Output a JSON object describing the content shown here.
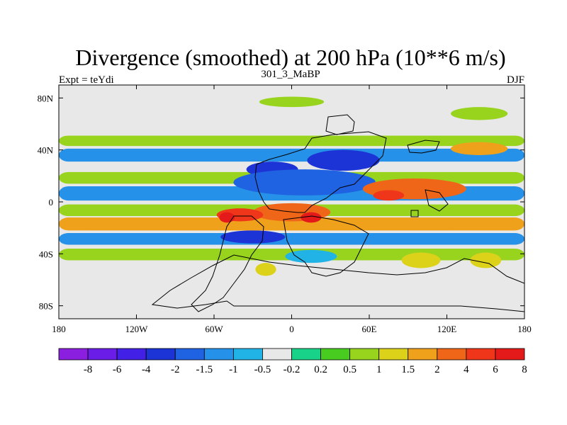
{
  "chart_data": {
    "type": "heatmap",
    "title": "Divergence (smoothed) at 200 hPa (10**6 m/s)",
    "subtitle_left": "Expt = teYdi",
    "subtitle_center": "301_3_MaBP",
    "subtitle_right": "DJF",
    "x_range": [
      -180,
      180
    ],
    "y_range": [
      -90,
      90
    ],
    "x_ticks": [
      {
        "value": -180,
        "label": "180"
      },
      {
        "value": -120,
        "label": "120W"
      },
      {
        "value": -60,
        "label": "60W"
      },
      {
        "value": 0,
        "label": "0"
      },
      {
        "value": 60,
        "label": "60E"
      },
      {
        "value": 120,
        "label": "120E"
      },
      {
        "value": 180,
        "label": "180"
      }
    ],
    "y_ticks": [
      {
        "value": 80,
        "label": "80N"
      },
      {
        "value": 40,
        "label": "40N"
      },
      {
        "value": 0,
        "label": "0"
      },
      {
        "value": -40,
        "label": "40S"
      },
      {
        "value": -80,
        "label": "80S"
      }
    ],
    "colorbar": {
      "colors": [
        "#8b1fe0",
        "#6a1de6",
        "#4220e6",
        "#1c34d6",
        "#1f62e2",
        "#2591e8",
        "#22b3e6",
        "#e8e8e8",
        "#19d28a",
        "#48cc20",
        "#98d41e",
        "#dcd21a",
        "#f0a11b",
        "#f06618",
        "#f0361a",
        "#e41a1a"
      ],
      "labels": [
        "-8",
        "-6",
        "-4",
        "-2",
        "-1.5",
        "-1",
        "-0.5",
        "-0.2",
        "0.2",
        "0.5",
        "1",
        "1.5",
        "2",
        "4",
        "6",
        "8"
      ]
    },
    "bands": [
      {
        "level": 0.5,
        "lon0": -180,
        "lon1": 180,
        "lat0": 43,
        "lat1": 51
      },
      {
        "level": -1.5,
        "lon0": -180,
        "lon1": 180,
        "lat0": 31,
        "lat1": 41
      },
      {
        "level": 0.5,
        "lon0": -180,
        "lon1": 180,
        "lat0": 14,
        "lat1": 23
      },
      {
        "level": -1.5,
        "lon0": -180,
        "lon1": 180,
        "lat0": 1,
        "lat1": 12
      },
      {
        "level": 0.5,
        "lon0": -180,
        "lon1": 180,
        "lat0": -11,
        "lat1": -2
      },
      {
        "level": 1.5,
        "lon0": -180,
        "lon1": 180,
        "lat0": -22,
        "lat1": -12
      },
      {
        "level": -1.5,
        "lon0": -180,
        "lon1": 180,
        "lat0": -33,
        "lat1": -24
      },
      {
        "level": 0.5,
        "lon0": -180,
        "lon1": 180,
        "lat0": -45,
        "lat1": -36
      },
      {
        "level": -0.5,
        "lon0": -180,
        "lon1": 180,
        "lat0": -60,
        "lat1": -50
      }
    ],
    "blobs": [
      {
        "level": 0.5,
        "lon": 145,
        "lat": 68,
        "rx": 22,
        "ry": 5
      },
      {
        "level": 1.5,
        "lon": 145,
        "lat": 41,
        "rx": 22,
        "ry": 5
      },
      {
        "level": -4,
        "lon": 40,
        "lat": 32,
        "rx": 28,
        "ry": 8
      },
      {
        "level": -4,
        "lon": -15,
        "lat": 25,
        "rx": 20,
        "ry": 6
      },
      {
        "level": -2,
        "lon": 10,
        "lat": 15,
        "rx": 55,
        "ry": 10
      },
      {
        "level": 2,
        "lon": 95,
        "lat": 10,
        "rx": 40,
        "ry": 8
      },
      {
        "level": 4,
        "lon": 75,
        "lat": 5,
        "rx": 12,
        "ry": 4
      },
      {
        "level": 2,
        "lon": 0,
        "lat": -8,
        "rx": 30,
        "ry": 7
      },
      {
        "level": 4,
        "lon": -40,
        "lat": -10,
        "rx": 18,
        "ry": 5
      },
      {
        "level": 6,
        "lon": 15,
        "lat": -12,
        "rx": 8,
        "ry": 4
      },
      {
        "level": 6,
        "lon": -50,
        "lat": -12,
        "rx": 6,
        "ry": 4
      },
      {
        "level": -4,
        "lon": -30,
        "lat": -27,
        "rx": 25,
        "ry": 5
      },
      {
        "level": 1,
        "lon": -20,
        "lat": -52,
        "rx": 8,
        "ry": 5
      },
      {
        "level": 1,
        "lon": 100,
        "lat": -45,
        "rx": 15,
        "ry": 6
      },
      {
        "level": -1,
        "lon": 15,
        "lat": -42,
        "rx": 20,
        "ry": 5
      },
      {
        "level": 1,
        "lon": 150,
        "lat": -45,
        "rx": 12,
        "ry": 6
      },
      {
        "level": 0.5,
        "lon": 0,
        "lat": 77,
        "rx": 25,
        "ry": 4
      }
    ]
  }
}
